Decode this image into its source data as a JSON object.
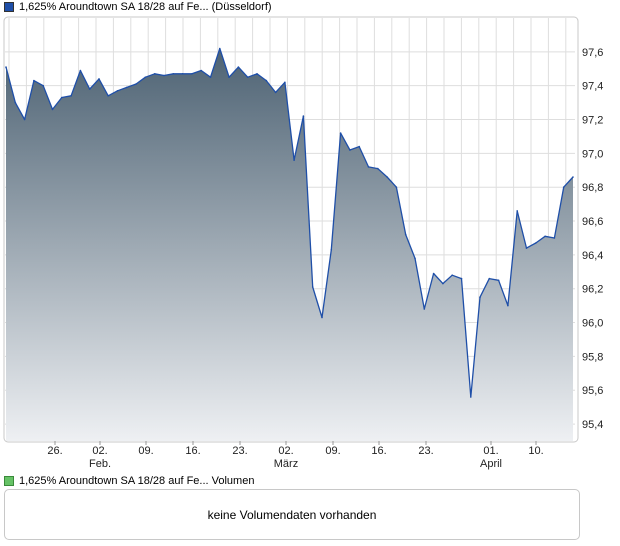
{
  "price_legend": {
    "label": "1,625% Aroundtown SA 18/28 auf Fe... (Düsseldorf)",
    "color": "#1f4fa8"
  },
  "volume_legend": {
    "label": "1,625% Aroundtown SA 18/28 auf Fe... Volumen",
    "color": "#66c266"
  },
  "volume_panel": {
    "message": "keine Volumendaten vorhanden"
  },
  "chart_data": {
    "type": "area",
    "title": "1,625% Aroundtown SA 18/28 auf Fe... (Düsseldorf)",
    "xlabel": "",
    "ylabel": "",
    "ylim": [
      95.3,
      97.8
    ],
    "y_ticks": [
      "95,4",
      "95,6",
      "95,8",
      "96,0",
      "96,2",
      "96,4",
      "96,6",
      "96,8",
      "97,0",
      "97,2",
      "97,4",
      "97,6"
    ],
    "x_ticks": [
      {
        "label": "26.",
        "sub": ""
      },
      {
        "label": "02.",
        "sub": "Feb."
      },
      {
        "label": "09.",
        "sub": ""
      },
      {
        "label": "16.",
        "sub": ""
      },
      {
        "label": "23.",
        "sub": ""
      },
      {
        "label": "02.",
        "sub": "März"
      },
      {
        "label": "09.",
        "sub": ""
      },
      {
        "label": "16.",
        "sub": ""
      },
      {
        "label": "23.",
        "sub": ""
      },
      {
        "label": "01.",
        "sub": "April"
      },
      {
        "label": "10.",
        "sub": ""
      }
    ],
    "grid": true,
    "line_color": "#1f4fa8",
    "fill_top_color": "#4d6273",
    "fill_bottom_color": "#eef0f3",
    "series": [
      {
        "name": "",
        "values": [
          97.51,
          97.3,
          97.2,
          97.43,
          97.4,
          97.26,
          97.33,
          97.34,
          97.49,
          97.38,
          97.44,
          97.34,
          97.37,
          97.39,
          97.41,
          97.45,
          97.47,
          97.46,
          97.47,
          97.47,
          97.47,
          97.49,
          97.45,
          97.62,
          97.45,
          97.51,
          97.45,
          97.47,
          97.43,
          97.36,
          97.42,
          96.96,
          97.22,
          96.21,
          96.03,
          96.43,
          97.12,
          97.02,
          97.04,
          96.92,
          96.91,
          96.86,
          96.8,
          96.52,
          96.38,
          96.08,
          96.29,
          96.23,
          96.28,
          96.26,
          95.56,
          96.15,
          96.26,
          96.25,
          96.1,
          96.66,
          96.44,
          96.47,
          96.51,
          96.5,
          96.8,
          96.86
        ]
      }
    ]
  }
}
